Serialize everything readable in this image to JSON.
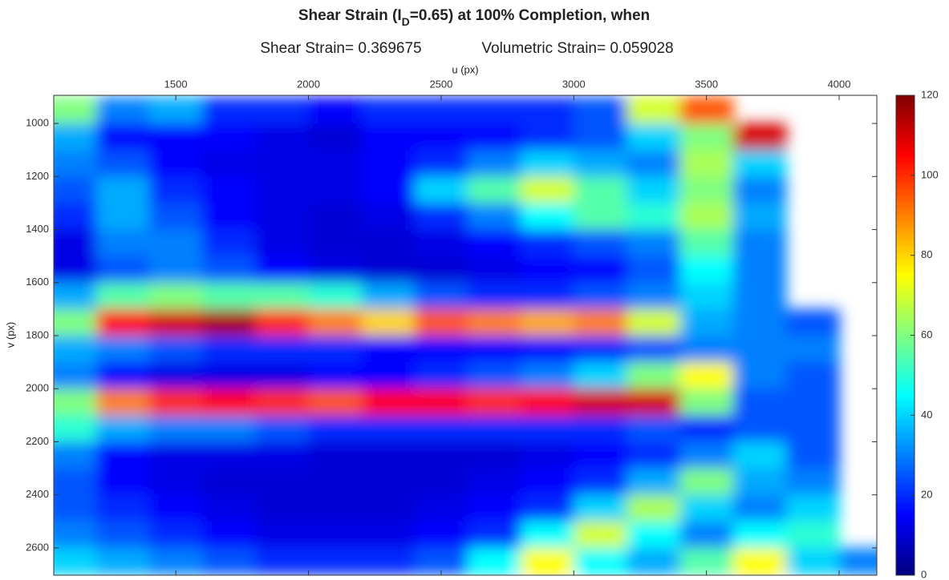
{
  "chart_data": {
    "type": "heatmap",
    "title": [
      "Shear Strain (I",
      "D",
      "=0.65) at 100% Completion, when"
    ],
    "subtitle": [
      "Shear Strain= 0.369675",
      "Volumetric Strain= 0.059028"
    ],
    "x_label": "u (px)",
    "y_label": "v (px)",
    "xlim": [
      1040,
      4142
    ],
    "ylim": [
      894,
      2703
    ],
    "y_reversed": true,
    "xticks": [
      1500,
      2000,
      2500,
      3000,
      3500,
      4000
    ],
    "yticks": [
      1000,
      1200,
      1400,
      1600,
      1800,
      2000,
      2200,
      2400,
      2600
    ],
    "x": [
      1100,
      1300,
      1500,
      1700,
      1900,
      2100,
      2300,
      2500,
      2700,
      2900,
      3100,
      3300,
      3500,
      3700,
      3900,
      4100
    ],
    "y": [
      950,
      1050,
      1150,
      1250,
      1350,
      1450,
      1550,
      1650,
      1750,
      1850,
      1950,
      2050,
      2150,
      2250,
      2350,
      2450,
      2550,
      2650
    ],
    "z": [
      [
        60,
        30,
        35,
        20,
        20,
        15,
        20,
        20,
        20,
        20,
        25,
        70,
        95,
        null,
        null,
        null
      ],
      [
        35,
        15,
        15,
        15,
        12,
        10,
        15,
        15,
        15,
        20,
        25,
        40,
        60,
        110,
        null,
        null
      ],
      [
        30,
        25,
        15,
        12,
        12,
        12,
        15,
        20,
        30,
        40,
        35,
        30,
        65,
        40,
        null,
        null
      ],
      [
        25,
        35,
        20,
        15,
        12,
        12,
        15,
        40,
        55,
        70,
        55,
        40,
        60,
        30,
        null,
        null
      ],
      [
        20,
        35,
        25,
        15,
        12,
        10,
        12,
        20,
        30,
        45,
        55,
        50,
        65,
        35,
        null,
        null
      ],
      [
        12,
        30,
        30,
        20,
        12,
        10,
        10,
        12,
        15,
        20,
        25,
        30,
        55,
        30,
        null,
        null
      ],
      [
        12,
        25,
        30,
        25,
        15,
        12,
        10,
        10,
        12,
        15,
        15,
        25,
        45,
        30,
        null,
        null
      ],
      [
        35,
        55,
        60,
        55,
        55,
        50,
        35,
        25,
        20,
        20,
        25,
        30,
        40,
        30,
        null,
        null
      ],
      [
        60,
        105,
        110,
        115,
        100,
        90,
        80,
        95,
        90,
        85,
        90,
        70,
        35,
        30,
        25,
        null
      ],
      [
        35,
        30,
        25,
        20,
        20,
        20,
        15,
        15,
        15,
        15,
        20,
        25,
        30,
        30,
        30,
        null
      ],
      [
        30,
        15,
        12,
        12,
        12,
        15,
        15,
        20,
        25,
        30,
        40,
        60,
        75,
        30,
        25,
        null
      ],
      [
        60,
        90,
        100,
        105,
        100,
        95,
        105,
        105,
        100,
        105,
        110,
        110,
        60,
        25,
        25,
        null
      ],
      [
        50,
        35,
        30,
        30,
        25,
        20,
        20,
        20,
        20,
        20,
        20,
        25,
        20,
        25,
        25,
        null
      ],
      [
        30,
        15,
        12,
        12,
        12,
        10,
        10,
        10,
        10,
        12,
        15,
        20,
        30,
        40,
        25,
        null
      ],
      [
        25,
        15,
        12,
        10,
        10,
        10,
        10,
        10,
        12,
        15,
        20,
        35,
        60,
        35,
        30,
        null
      ],
      [
        25,
        20,
        15,
        12,
        10,
        10,
        10,
        12,
        15,
        20,
        40,
        65,
        40,
        30,
        40,
        null
      ],
      [
        30,
        25,
        20,
        15,
        12,
        12,
        12,
        15,
        20,
        45,
        70,
        45,
        30,
        45,
        50,
        null
      ],
      [
        40,
        35,
        30,
        25,
        20,
        20,
        20,
        25,
        45,
        75,
        45,
        35,
        55,
        75,
        40,
        30
      ]
    ],
    "colormap": "jet",
    "clim": [
      0,
      120
    ],
    "cticks": [
      0,
      20,
      40,
      60,
      80,
      100,
      120
    ]
  }
}
